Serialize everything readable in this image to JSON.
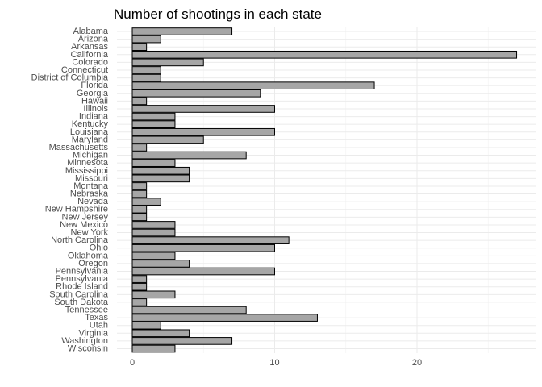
{
  "chart_data": {
    "type": "bar",
    "orientation": "horizontal",
    "title": "Number of shootings in each state",
    "xlabel": "",
    "ylabel": "",
    "xlim": [
      0,
      28
    ],
    "x_ticks": [
      0,
      10,
      20
    ],
    "grid": true,
    "bar_color": "#a6a6a6",
    "bar_outline": "#000000",
    "categories": [
      "Alabama",
      "Arizona",
      "Arkansas",
      "California",
      "Colorado",
      "Connecticut",
      "District of Columbia",
      "Florida",
      "Georgia",
      "Hawaii",
      "Illinois",
      "Indiana",
      "Kentucky",
      "Louisiana",
      "Maryland",
      "Massachusetts",
      "Michigan",
      "Minnesota",
      "Mississippi",
      "Missouri",
      "Montana",
      "Nebraska",
      "Nevada",
      "New Hampshire",
      "New Jersey",
      "New Mexico",
      "New York",
      "North Carolina",
      "Ohio",
      "Oklahoma",
      "Oregon",
      "Pennsylvania",
      "Pennsylvania ",
      "Rhode Island",
      "South Carolina",
      "South Dakota",
      "Tennessee",
      "Texas",
      "Utah",
      "Virginia",
      "Washington",
      "Wisconsin"
    ],
    "values": [
      7,
      2,
      1,
      27,
      5,
      2,
      2,
      17,
      9,
      1,
      10,
      3,
      3,
      10,
      5,
      1,
      8,
      3,
      4,
      4,
      1,
      1,
      2,
      1,
      1,
      3,
      3,
      11,
      10,
      3,
      4,
      10,
      1,
      1,
      3,
      1,
      8,
      13,
      2,
      4,
      7,
      3
    ]
  }
}
